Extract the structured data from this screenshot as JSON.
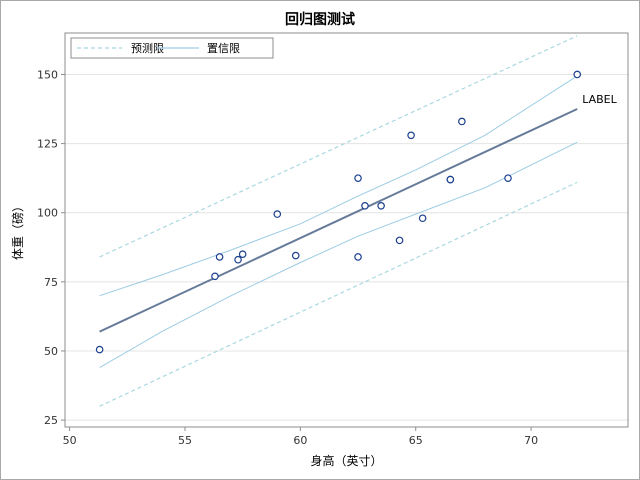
{
  "chart_data": {
    "type": "scatter",
    "title": "回归图测试",
    "xlabel": "身高（英寸）",
    "ylabel": "体重（磅）",
    "xlim": [
      49.8,
      74.2
    ],
    "ylim": [
      22.5,
      165
    ],
    "xticks": [
      50,
      55,
      60,
      65,
      70
    ],
    "yticks": [
      25,
      50,
      75,
      100,
      125,
      150
    ],
    "grid": "horizontal",
    "legend_position": "top-left",
    "legend": [
      {
        "name": "预测限",
        "style": "dashed",
        "color": "#a8d8e0"
      },
      {
        "name": "置信限",
        "style": "solid",
        "color": "#9ccce4"
      }
    ],
    "points": [
      {
        "x": 51.3,
        "y": 50.5
      },
      {
        "x": 56.3,
        "y": 77
      },
      {
        "x": 56.5,
        "y": 84
      },
      {
        "x": 57.3,
        "y": 83
      },
      {
        "x": 57.5,
        "y": 85
      },
      {
        "x": 59.0,
        "y": 99.5
      },
      {
        "x": 59.8,
        "y": 84.5
      },
      {
        "x": 62.5,
        "y": 112.5
      },
      {
        "x": 62.5,
        "y": 84
      },
      {
        "x": 62.8,
        "y": 102.5
      },
      {
        "x": 63.5,
        "y": 102.5
      },
      {
        "x": 64.3,
        "y": 90
      },
      {
        "x": 64.8,
        "y": 128
      },
      {
        "x": 65.3,
        "y": 98
      },
      {
        "x": 66.5,
        "y": 112
      },
      {
        "x": 66.5,
        "y": 112
      },
      {
        "x": 67.0,
        "y": 133
      },
      {
        "x": 69.0,
        "y": 112.5
      },
      {
        "x": 72.0,
        "y": 150
      }
    ],
    "fit_line": {
      "x": [
        51.3,
        72.0
      ],
      "y": [
        57,
        137.5
      ],
      "color": "#667a99",
      "label": "LABEL"
    },
    "confidence_limits": {
      "x": [
        51.3,
        54,
        57,
        60,
        62.5,
        65,
        68,
        72
      ],
      "lower": [
        44,
        57,
        70,
        82,
        91.5,
        99.5,
        109,
        125.5
      ],
      "upper": [
        70,
        77.5,
        86.5,
        96,
        106,
        115.5,
        128,
        149.5
      ]
    },
    "prediction_limits": {
      "x": [
        51.3,
        72.0
      ],
      "lower": [
        30,
        111
      ],
      "upper": [
        84,
        164
      ]
    },
    "colors": {
      "marker": "#1b3f8f",
      "grid": "#e4e4e4",
      "axis": "#8c8c8c"
    }
  }
}
